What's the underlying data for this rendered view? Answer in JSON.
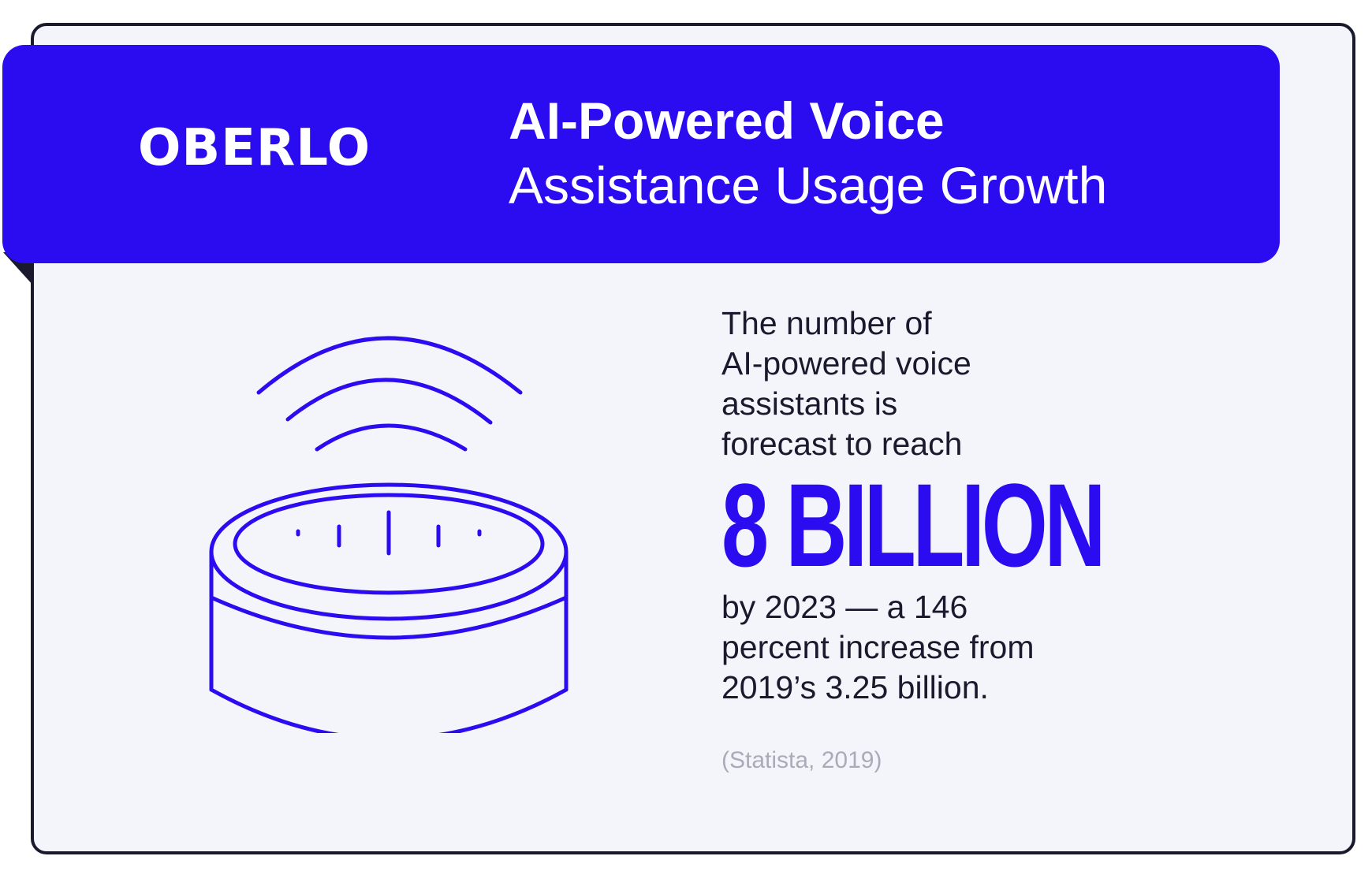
{
  "brand": {
    "logo_text": "OBERLO"
  },
  "header": {
    "title_line1": "AI-Powered Voice",
    "title_line2": "Assistance Usage Growth"
  },
  "illustration": {
    "icon": "smart-speaker-icon"
  },
  "stat": {
    "intro_lines": [
      "The number of",
      "AI-powered voice",
      "assistants is",
      "forecast to reach"
    ],
    "highlight": "8 BILLION",
    "outro_lines": [
      "by 2023 — a 146",
      "percent increase from",
      "2019’s 3.25 billion."
    ]
  },
  "source": "(Statista, 2019)",
  "colors": {
    "accent": "#2b0cf0",
    "text": "#1a1a2e",
    "card_background": "#f4f5fa",
    "source_text": "#a9acb8",
    "header_text": "#ffffff"
  }
}
